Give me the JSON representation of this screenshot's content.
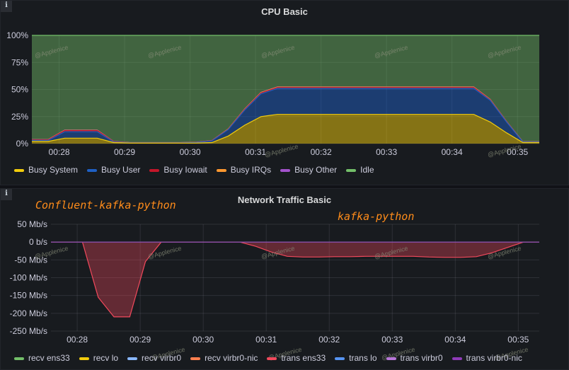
{
  "panels": [
    {
      "title": "CPU Basic",
      "info_icon": "info-icon",
      "legend": [
        {
          "name": "Busy System",
          "color": "#F2CC0C"
        },
        {
          "name": "Busy User",
          "color": "#1F60C4"
        },
        {
          "name": "Busy Iowait",
          "color": "#C4162A"
        },
        {
          "name": "Busy IRQs",
          "color": "#FF9830"
        },
        {
          "name": "Busy Other",
          "color": "#A352CC"
        },
        {
          "name": "Idle",
          "color": "#73BF69"
        }
      ]
    },
    {
      "title": "Network Traffic Basic",
      "info_icon": "info-icon",
      "legend": [
        {
          "name": "recv ens33",
          "color": "#73BF69"
        },
        {
          "name": "recv lo",
          "color": "#F2CC0C"
        },
        {
          "name": "recv virbr0",
          "color": "#8AB8FF"
        },
        {
          "name": "recv virbr0-nic",
          "color": "#FF7F4F"
        },
        {
          "name": "trans ens33",
          "color": "#F2495C"
        },
        {
          "name": "trans lo",
          "color": "#5794F2"
        },
        {
          "name": "trans virbr0",
          "color": "#B877D9"
        },
        {
          "name": "trans virbr0-nic",
          "color": "#8F3BB8"
        }
      ]
    }
  ],
  "annotations": {
    "left": "Confluent-kafka-python",
    "right": "kafka-python"
  },
  "watermark": "@Applenice",
  "chart_data": [
    {
      "type": "area",
      "title": "CPU Basic",
      "x": [
        "00:27:35",
        "00:27:50",
        "00:28:05",
        "00:28:20",
        "00:28:35",
        "00:28:50",
        "00:29:05",
        "00:29:20",
        "00:29:35",
        "00:29:50",
        "00:30:05",
        "00:30:20",
        "00:30:35",
        "00:30:50",
        "00:31:05",
        "00:31:20",
        "00:31:35",
        "00:31:50",
        "00:32:05",
        "00:32:20",
        "00:32:35",
        "00:32:50",
        "00:33:05",
        "00:33:20",
        "00:33:35",
        "00:33:50",
        "00:34:05",
        "00:34:20",
        "00:34:35",
        "00:34:50",
        "00:35:05",
        "00:35:20"
      ],
      "x_ticks": [
        "00:28",
        "00:29",
        "00:30",
        "00:31",
        "00:32",
        "00:33",
        "00:34",
        "00:35"
      ],
      "y_ticks": [
        "0%",
        "25%",
        "50%",
        "75%",
        "100%"
      ],
      "ylim": [
        0,
        100
      ],
      "stacked": true,
      "series": [
        {
          "name": "Busy System",
          "values": [
            2,
            2,
            5,
            5,
            5,
            1,
            0.5,
            0.5,
            0.5,
            0.5,
            0.5,
            1,
            7,
            17,
            25,
            27,
            27,
            27,
            27,
            27,
            27,
            27,
            27,
            27,
            27,
            27,
            27,
            27,
            20,
            10,
            1,
            1
          ]
        },
        {
          "name": "Busy User",
          "values": [
            1,
            1,
            6,
            6,
            6,
            0.5,
            0.2,
            0.2,
            0.2,
            0.2,
            0.5,
            1.5,
            6,
            14,
            21,
            24,
            24,
            24,
            24,
            24,
            24,
            24,
            24,
            24,
            24,
            24,
            24,
            24,
            20,
            10,
            0.5,
            0.5
          ]
        },
        {
          "name": "Busy Iowait",
          "values": [
            0.5,
            0.5,
            1,
            1,
            1,
            0.3,
            0.1,
            0.1,
            0.1,
            0.1,
            0.1,
            0.2,
            0.3,
            0.5,
            0.8,
            0.8,
            0.8,
            0.8,
            0.8,
            0.8,
            0.8,
            0.8,
            0.8,
            0.8,
            0.8,
            0.8,
            0.8,
            0.8,
            0.5,
            0.3,
            0.1,
            0.1
          ]
        },
        {
          "name": "Busy IRQs",
          "values": [
            0.2,
            0.2,
            0.3,
            0.3,
            0.3,
            0.1,
            0.1,
            0.1,
            0.1,
            0.1,
            0.1,
            0.1,
            0.2,
            0.3,
            0.4,
            0.4,
            0.4,
            0.4,
            0.4,
            0.4,
            0.4,
            0.4,
            0.4,
            0.4,
            0.4,
            0.4,
            0.4,
            0.4,
            0.3,
            0.2,
            0.1,
            0.1
          ]
        },
        {
          "name": "Busy Other",
          "values": [
            0.1,
            0.1,
            0.2,
            0.2,
            0.2,
            0.1,
            0.1,
            0.1,
            0.1,
            0.1,
            0.1,
            0.1,
            0.1,
            0.2,
            0.2,
            0.2,
            0.2,
            0.2,
            0.2,
            0.2,
            0.2,
            0.2,
            0.2,
            0.2,
            0.2,
            0.2,
            0.2,
            0.2,
            0.2,
            0.1,
            0.1,
            0.1
          ]
        },
        {
          "name": "Idle",
          "values": [
            96.2,
            96.2,
            87.5,
            87.5,
            87.5,
            98,
            99,
            99,
            99,
            99,
            98.7,
            97.1,
            86.4,
            68,
            52.6,
            47.6,
            47.6,
            47.6,
            47.6,
            47.6,
            47.6,
            47.6,
            47.6,
            47.6,
            47.6,
            47.6,
            47.6,
            47.6,
            59,
            79.4,
            98.2,
            98.2
          ]
        }
      ],
      "grid": true,
      "legend_position": "bottom"
    },
    {
      "type": "area",
      "title": "Network Traffic Basic",
      "x": [
        "00:27:35",
        "00:27:50",
        "00:28:05",
        "00:28:20",
        "00:28:35",
        "00:28:50",
        "00:29:05",
        "00:29:20",
        "00:29:35",
        "00:29:50",
        "00:30:05",
        "00:30:20",
        "00:30:35",
        "00:30:50",
        "00:31:05",
        "00:31:20",
        "00:31:35",
        "00:31:50",
        "00:32:05",
        "00:32:20",
        "00:32:35",
        "00:32:50",
        "00:33:05",
        "00:33:20",
        "00:33:35",
        "00:33:50",
        "00:34:05",
        "00:34:20",
        "00:34:35",
        "00:34:50",
        "00:35:05",
        "00:35:20"
      ],
      "x_ticks": [
        "00:28",
        "00:29",
        "00:30",
        "00:31",
        "00:32",
        "00:33",
        "00:34",
        "00:35"
      ],
      "y_ticks": [
        "50 Mb/s",
        "0 b/s",
        "-50 Mb/s",
        "-100 Mb/s",
        "-150 Mb/s",
        "-200 Mb/s",
        "-250 Mb/s"
      ],
      "ylim": [
        -250,
        50
      ],
      "unit": "Mb/s",
      "series": [
        {
          "name": "trans ens33",
          "values": [
            0,
            0,
            0,
            -155,
            -210,
            -210,
            -55,
            0,
            0,
            0,
            0,
            0,
            0,
            -12,
            -28,
            -40,
            -42,
            -42,
            -41,
            -41,
            -40,
            -40,
            -40,
            -40,
            -42,
            -43,
            -43,
            -41,
            -30,
            -15,
            0,
            0
          ]
        },
        {
          "name": "recv ens33",
          "values": [
            0,
            0,
            0,
            0,
            0,
            0,
            0,
            0,
            0,
            0,
            0,
            0,
            0,
            0,
            0,
            0,
            0,
            0,
            0,
            0,
            0,
            0,
            0,
            0,
            0,
            0,
            0,
            0,
            0,
            0,
            0,
            0
          ]
        },
        {
          "name": "trans virbr0-nic",
          "values": [
            0,
            0,
            0,
            0,
            0,
            0,
            0,
            0,
            0,
            0,
            0,
            0,
            0,
            0,
            0,
            0,
            0,
            0,
            0,
            0,
            0,
            0,
            0,
            0,
            0,
            0,
            0,
            0,
            0,
            0,
            0,
            0
          ]
        }
      ],
      "grid": true,
      "legend_position": "bottom"
    }
  ]
}
